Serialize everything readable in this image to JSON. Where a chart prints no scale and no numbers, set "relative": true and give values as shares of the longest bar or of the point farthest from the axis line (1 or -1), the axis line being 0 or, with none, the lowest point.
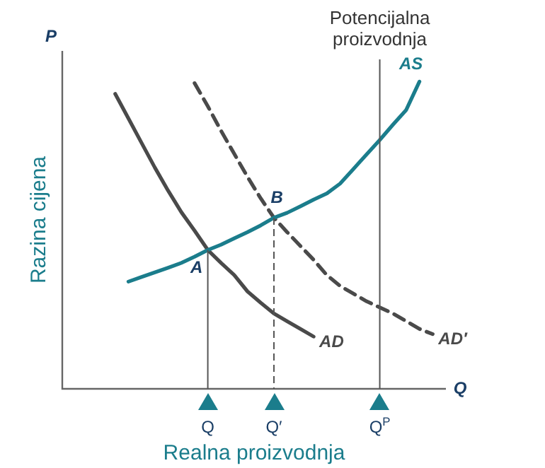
{
  "chart_data": {
    "type": "line",
    "relative": true,
    "xlabel": "Realna proizvodnja",
    "ylabel": "Razina cijena",
    "categories": [
      null,
      null,
      null,
      null,
      null,
      null,
      null,
      null,
      null,
      null,
      null,
      "Q",
      null,
      null,
      null,
      null,
      "Q′",
      null,
      null,
      null,
      null,
      null,
      null,
      null,
      "Q$^{P}$",
      null,
      null,
      null,
      null,
      null
    ],
    "series": [
      {
        "name": "AS",
        "color": "#1b7d8c",
        "values": [
          null,
          null,
          null,
          null,
          null,
          0.349,
          0.364,
          0.379,
          0.394,
          0.41,
          0.43,
          0.452,
          0.469,
          0.49,
          0.51,
          0.532,
          0.557,
          0.573,
          0.594,
          0.616,
          0.636,
          0.668,
          0.715,
          0.763,
          0.81,
          0.86,
          0.908,
          1,
          null,
          null
        ]
      },
      {
        "name": "AD",
        "color": "#4a4a4a",
        "values": [
          null,
          null,
          null,
          null,
          0.96,
          0.88,
          0.8,
          0.72,
          0.645,
          0.575,
          0.515,
          0.452,
          0.41,
          0.37,
          0.317,
          0.28,
          0.245,
          0.22,
          0.195,
          0.17,
          null,
          null,
          null,
          null,
          null,
          null,
          null,
          null,
          null,
          null
        ]
      },
      {
        "name": "AD′",
        "color": "#4a4a4a",
        "line_style": "dashed",
        "values": [
          null,
          null,
          null,
          null,
          null,
          null,
          null,
          null,
          null,
          null,
          0.995,
          0.92,
          0.84,
          0.765,
          0.69,
          0.62,
          0.557,
          0.51,
          0.465,
          0.42,
          0.37,
          0.335,
          0.31,
          0.285,
          0.265,
          0.245,
          0.22,
          0.195,
          0.178,
          null
        ]
      }
    ],
    "ref_lines": [
      {
        "axis": "x",
        "value": "Q$^{P}$",
        "label": "Potencijalna proizvodnja",
        "color": "#555555"
      }
    ],
    "annotations": [
      "P",
      "Q",
      {
        "text": "A",
        "x": "Q",
        "y": 0.452
      },
      {
        "text": "B",
        "x": "Q′",
        "y": 0.557
      }
    ],
    "legend": false,
    "marker": "none"
  }
}
